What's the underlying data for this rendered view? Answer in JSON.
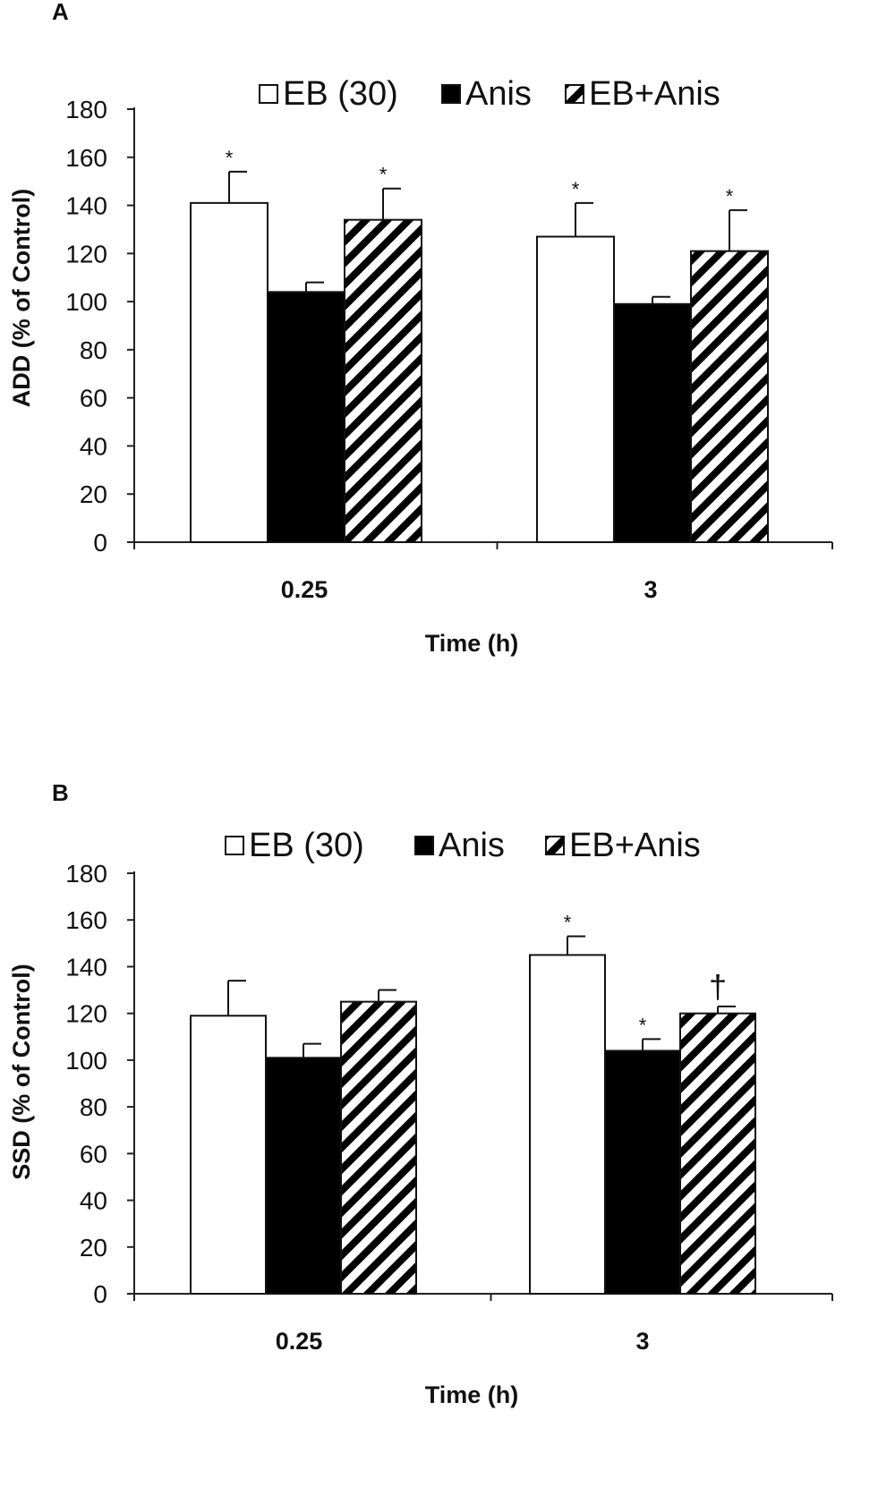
{
  "chart_data": [
    {
      "panel": "A",
      "type": "bar",
      "categories": [
        "0.25",
        "3"
      ],
      "series": [
        {
          "name": "EB (30)",
          "values": [
            141,
            127
          ],
          "errors": [
            13,
            14
          ],
          "significance": [
            "*",
            "*"
          ]
        },
        {
          "name": "Anis",
          "values": [
            104,
            99
          ],
          "errors": [
            4,
            3
          ],
          "significance": [
            "",
            ""
          ]
        },
        {
          "name": "EB+Anis",
          "values": [
            134,
            121
          ],
          "errors": [
            13,
            17
          ],
          "significance": [
            "*",
            "*"
          ]
        }
      ],
      "xlabel": "Time (h)",
      "ylabel": "ADD (% of Control)",
      "ylim": [
        0,
        180
      ],
      "yticks": [
        "0",
        "20",
        "40",
        "60",
        "80",
        "100",
        "120",
        "140",
        "160",
        "180"
      ],
      "legend": "top",
      "grid": false
    },
    {
      "panel": "B",
      "type": "bar",
      "categories": [
        "0.25",
        "3"
      ],
      "series": [
        {
          "name": "EB (30)",
          "values": [
            119,
            145
          ],
          "errors": [
            15,
            8
          ],
          "significance": [
            "",
            "*"
          ]
        },
        {
          "name": "Anis",
          "values": [
            101,
            104
          ],
          "errors": [
            6,
            5
          ],
          "significance": [
            "",
            "*"
          ]
        },
        {
          "name": "EB+Anis",
          "values": [
            125,
            120
          ],
          "errors": [
            5,
            3
          ],
          "significance": [
            "",
            "†"
          ]
        }
      ],
      "xlabel": "Time (h)",
      "ylabel": "SSD (% of Control)",
      "ylim": [
        0,
        180
      ],
      "yticks": [
        "0",
        "20",
        "40",
        "60",
        "80",
        "100",
        "120",
        "140",
        "160",
        "180"
      ],
      "legend": "top",
      "grid": false
    }
  ],
  "colors": {
    "eb": "#ffffff",
    "anis": "#000000",
    "hatch": "#000000",
    "axis": "#222222"
  }
}
